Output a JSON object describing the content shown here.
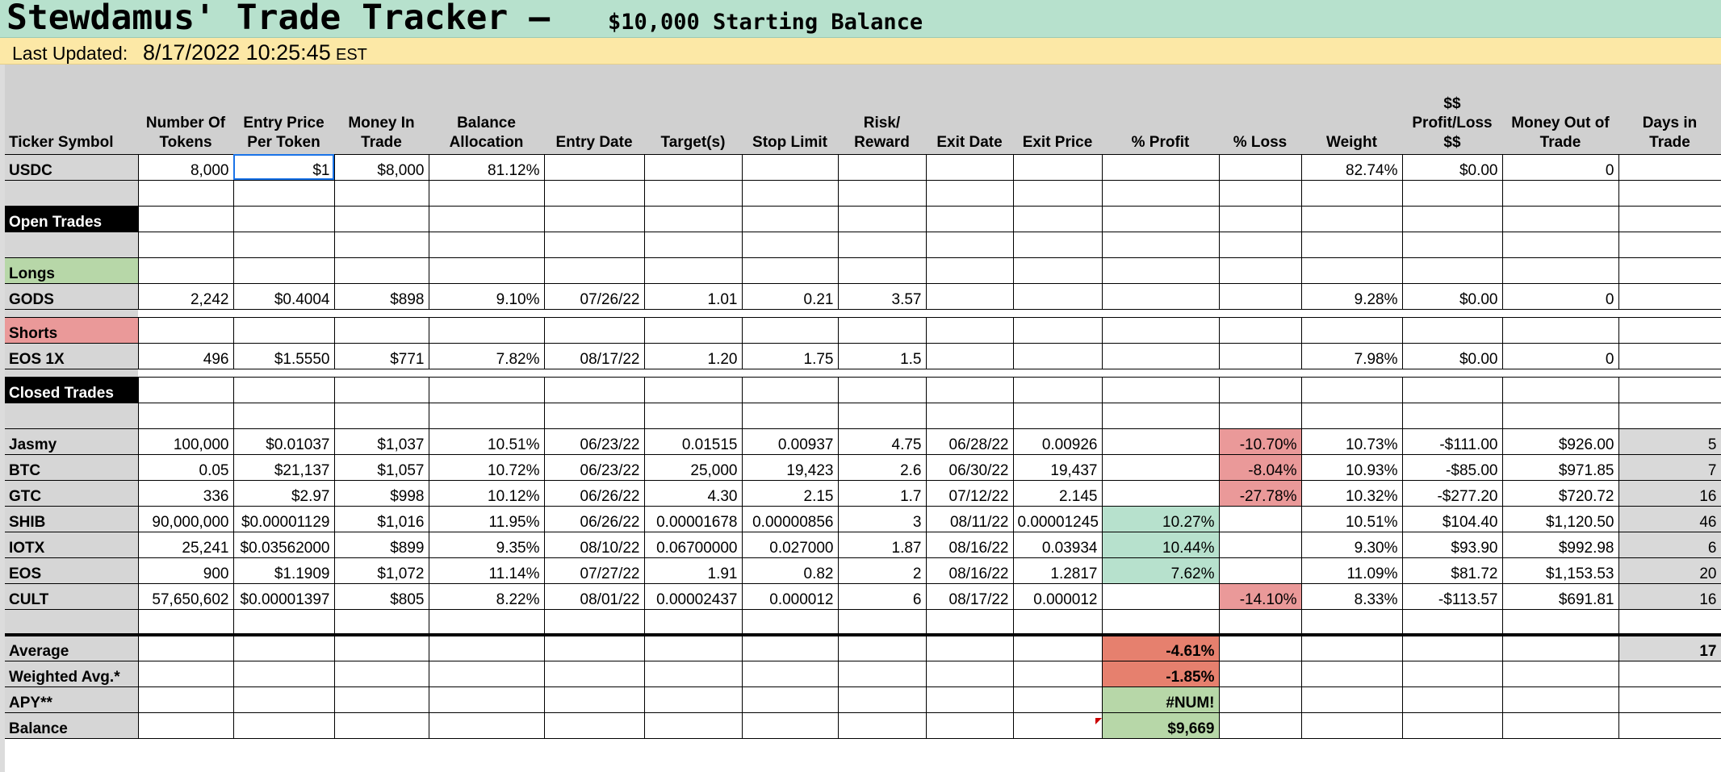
{
  "title": {
    "main": "Stewdamus' Trade Tracker –",
    "sub": "$10,000 Starting Balance"
  },
  "update": {
    "label": "Last Updated:",
    "value": "8/17/2022 10:25:45",
    "tz": "EST"
  },
  "headers": [
    "Ticker Symbol",
    "Number Of Tokens",
    "Entry Price Per Token",
    "Money In Trade",
    "Balance Allocation",
    "Entry Date",
    "Target(s)",
    "Stop Limit",
    "Risk/ Reward",
    "Exit Date",
    "Exit Price",
    "% Profit",
    "% Loss",
    "Weight",
    "$$ Profit/Loss $$",
    "Money Out of Trade",
    "Days in Trade"
  ],
  "rows": {
    "usdc": [
      "USDC",
      "8,000",
      "$1",
      "$8,000",
      "81.12%",
      "",
      "",
      "",
      "",
      "",
      "",
      "",
      "",
      "82.74%",
      "$0.00",
      "0",
      ""
    ],
    "open_trades_label": "Open Trades",
    "longs_label": "Longs",
    "gods": [
      "GODS",
      "2,242",
      "$0.4004",
      "$898",
      "9.10%",
      "07/26/22",
      "1.01",
      "0.21",
      "3.57",
      "",
      "",
      "",
      "",
      "9.28%",
      "$0.00",
      "0",
      ""
    ],
    "shorts_label": "Shorts",
    "eos1x": [
      "EOS 1X",
      "496",
      "$1.5550",
      "$771",
      "7.82%",
      "08/17/22",
      "1.20",
      "1.75",
      "1.5",
      "",
      "",
      "",
      "",
      "7.98%",
      "$0.00",
      "0",
      ""
    ],
    "closed_trades_label": "Closed Trades",
    "closed": [
      [
        "Jasmy",
        "100,000",
        "$0.01037",
        "$1,037",
        "10.51%",
        "06/23/22",
        "0.01515",
        "0.00937",
        "4.75",
        "06/28/22",
        "0.00926",
        "",
        "-10.70%",
        "10.73%",
        "-$111.00",
        "$926.00",
        "5"
      ],
      [
        "BTC",
        "0.05",
        "$21,137",
        "$1,057",
        "10.72%",
        "06/23/22",
        "25,000",
        "19,423",
        "2.6",
        "06/30/22",
        "19,437",
        "",
        "-8.04%",
        "10.93%",
        "-$85.00",
        "$971.85",
        "7"
      ],
      [
        "GTC",
        "336",
        "$2.97",
        "$998",
        "10.12%",
        "06/26/22",
        "4.30",
        "2.15",
        "1.7",
        "07/12/22",
        "2.145",
        "",
        "-27.78%",
        "10.32%",
        "-$277.20",
        "$720.72",
        "16"
      ],
      [
        "SHIB",
        "90,000,000",
        "$0.00001129",
        "$1,016",
        "11.95%",
        "06/26/22",
        "0.00001678",
        "0.00000856",
        "3",
        "08/11/22",
        "0.00001245",
        "10.27%",
        "",
        "10.51%",
        "$104.40",
        "$1,120.50",
        "46"
      ],
      [
        "IOTX",
        "25,241",
        "$0.03562000",
        "$899",
        "9.35%",
        "08/10/22",
        "0.06700000",
        "0.027000",
        "1.87",
        "08/16/22",
        "0.03934",
        "10.44%",
        "",
        "9.30%",
        "$93.90",
        "$992.98",
        "6"
      ],
      [
        "EOS",
        "900",
        "$1.1909",
        "$1,072",
        "11.14%",
        "07/27/22",
        "1.91",
        "0.82",
        "2",
        "08/16/22",
        "1.2817",
        "7.62%",
        "",
        "11.09%",
        "$81.72",
        "$1,153.53",
        "20"
      ],
      [
        "CULT",
        "57,650,602",
        "$0.00001397",
        "$805",
        "8.22%",
        "08/01/22",
        "0.00002437",
        "0.000012",
        "6",
        "08/17/22",
        "0.000012",
        "",
        "-14.10%",
        "8.33%",
        "-$113.57",
        "$691.81",
        "16"
      ]
    ]
  },
  "summary": {
    "average_label": "Average",
    "average_value": "-4.61%",
    "average_days": "17",
    "weighted_label": "Weighted Avg.*",
    "weighted_value": "-1.85%",
    "apy_label": "APY**",
    "apy_value": "#NUM!",
    "balance_label": "Balance",
    "balance_value": "$9,669"
  },
  "colors": {
    "title_bg": "#b7e1cd",
    "update_bg": "#fce8a6",
    "header_bg": "#d0d0d0",
    "long_bg": "#b7d7a8",
    "short_bg": "#ea9999",
    "loss_bg": "#ea9999",
    "profit_bg": "#b7e1cd",
    "avg_red": "#e6806e",
    "section_black": "#000000"
  }
}
